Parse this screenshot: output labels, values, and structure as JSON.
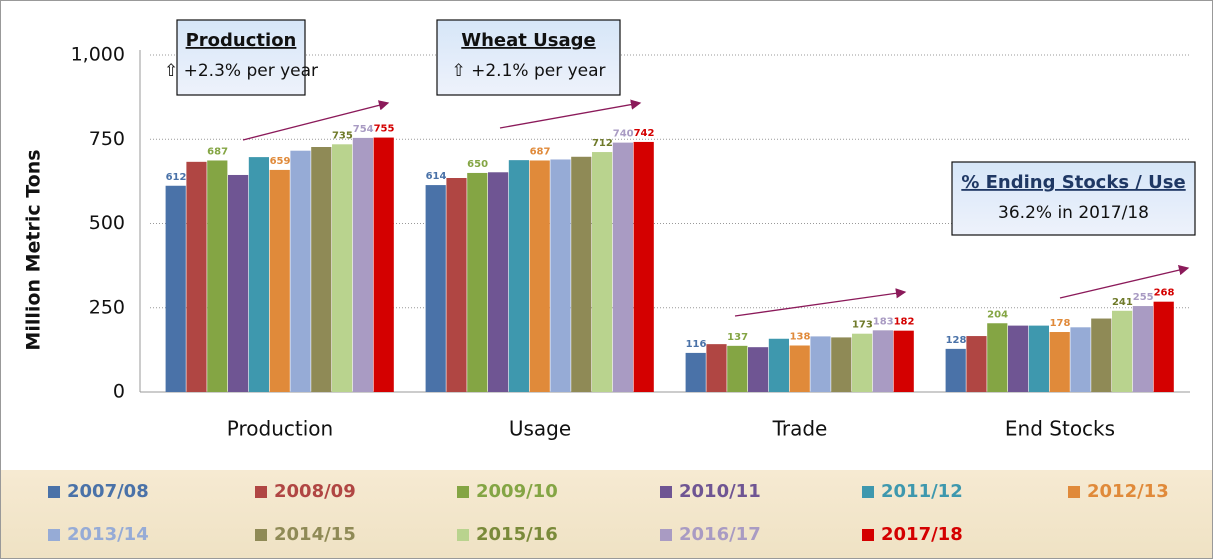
{
  "chart_data": {
    "type": "bar",
    "y_label": "Million Metric Tons",
    "categories": [
      "Production",
      "Usage",
      "Trade",
      "End Stocks"
    ],
    "ylim": [
      0,
      1000
    ],
    "yticks": [
      0,
      250,
      500,
      750,
      {
        "value": 1000,
        "label": "1,000"
      }
    ],
    "grid": true,
    "legend": "bottom",
    "series": [
      {
        "name": "2007/08",
        "color": "#4a72a8",
        "values": [
          612,
          614,
          116,
          128
        ],
        "value_labels": [
          "612",
          "614",
          "116",
          "128"
        ]
      },
      {
        "name": "2008/09",
        "color": "#b04643",
        "values": [
          683,
          635,
          142,
          166
        ]
      },
      {
        "name": "2009/10",
        "color": "#84a544",
        "values": [
          687,
          650,
          137,
          204
        ],
        "value_labels": [
          "687",
          "650",
          "137",
          "204"
        ]
      },
      {
        "name": "2010/11",
        "color": "#6f5593",
        "values": [
          644,
          652,
          133,
          197
        ]
      },
      {
        "name": "2011/12",
        "color": "#3e98ae",
        "values": [
          697,
          688,
          158,
          197
        ]
      },
      {
        "name": "2012/13",
        "color": "#e08a3a",
        "values": [
          659,
          687,
          138,
          178
        ],
        "value_labels": [
          "659",
          "687",
          "138",
          "178"
        ]
      },
      {
        "name": "2013/14",
        "color": "#96abd6",
        "values": [
          716,
          690,
          165,
          192
        ]
      },
      {
        "name": "2014/15",
        "color": "#8f8a56",
        "values": [
          727,
          698,
          162,
          218
        ]
      },
      {
        "name": "2015/16",
        "color": "#b9d38e",
        "values": [
          735,
          712,
          173,
          241
        ],
        "value_labels": [
          "735",
          "712",
          "173",
          "241"
        ]
      },
      {
        "name": "2016/17",
        "color": "#a99bc3",
        "values": [
          754,
          740,
          183,
          255
        ],
        "value_labels": [
          "754",
          "740",
          "183",
          "255"
        ]
      },
      {
        "name": "2017/18",
        "color": "#d40000",
        "values": [
          755,
          742,
          182,
          268
        ],
        "value_labels": [
          "755",
          "742",
          "182",
          "268"
        ]
      }
    ],
    "annotations": [
      {
        "title": "Production",
        "text": "⇧ +2.3% per year"
      },
      {
        "title": "Wheat Usage",
        "text": "⇧ +2.1% per year"
      },
      {
        "title": "% Ending Stocks / Use",
        "text": "36.2% in 2017/18"
      }
    ]
  }
}
